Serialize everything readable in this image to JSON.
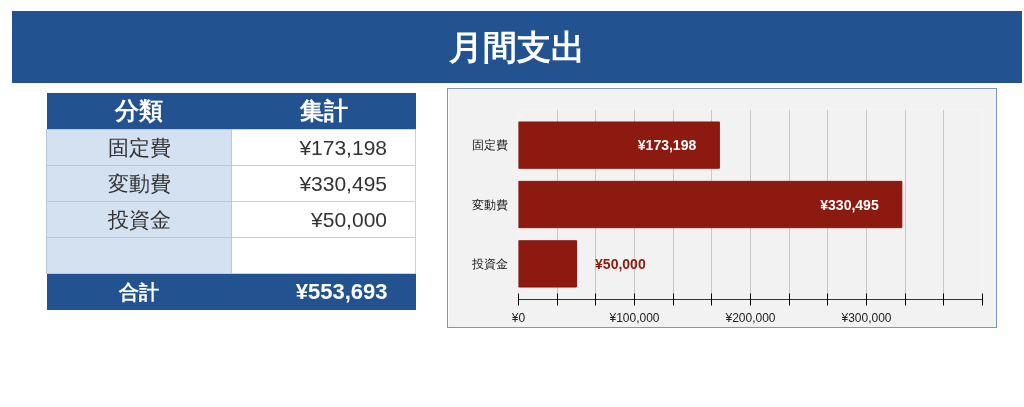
{
  "chart_data": {
    "type": "bar",
    "orientation": "horizontal",
    "title": "月間支出",
    "categories": [
      "固定費",
      "変動費",
      "投資金"
    ],
    "values": [
      173198,
      330495,
      50000
    ],
    "value_labels": [
      "¥173,198",
      "¥330,495",
      "¥50,000"
    ],
    "color": "#8c1a11",
    "xlim": [
      0,
      400000
    ],
    "xticks": [
      {
        "value": 0,
        "label": "¥0"
      },
      {
        "value": 33333,
        "label": null
      },
      {
        "value": 66667,
        "label": null
      },
      {
        "value": 100000,
        "label": "¥100,000"
      },
      {
        "value": 133333,
        "label": null
      },
      {
        "value": 166667,
        "label": null
      },
      {
        "value": 200000,
        "label": "¥200,000"
      },
      {
        "value": 233333,
        "label": null
      },
      {
        "value": 266667,
        "label": null
      },
      {
        "value": 300000,
        "label": "¥300,000"
      },
      {
        "value": 333333,
        "label": null
      },
      {
        "value": 366667,
        "label": null
      },
      {
        "value": 400000,
        "label": null
      }
    ],
    "grid": "x",
    "annotations": [
      "分類",
      "集計",
      "合計",
      "¥553,693"
    ]
  }
}
